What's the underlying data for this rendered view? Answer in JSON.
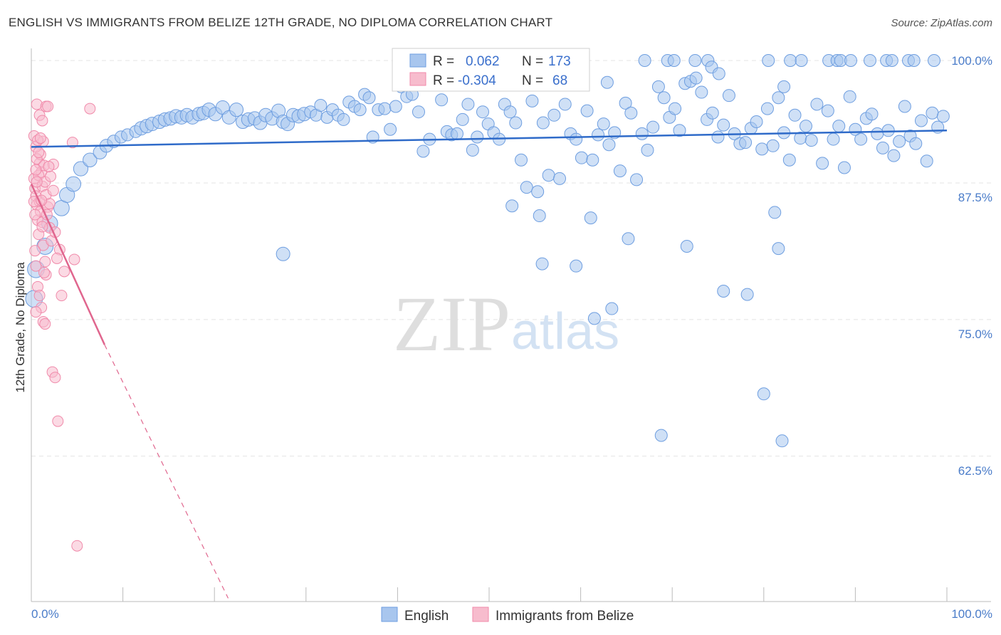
{
  "chart_data": {
    "type": "scatter",
    "title": "ENGLISH VS IMMIGRANTS FROM BELIZE 12TH GRADE, NO DIPLOMA CORRELATION CHART",
    "source": "Source: ZipAtlas.com",
    "xlabel": "",
    "ylabel": "12th Grade, No Diploma",
    "xlim": [
      0,
      100
    ],
    "ylim": [
      50.5,
      101.5
    ],
    "x_tick_labels": [
      "0.0%",
      "100.0%"
    ],
    "y_ticks": [
      {
        "value": 100.0,
        "label": "100.0%"
      },
      {
        "value": 87.5,
        "label": "87.5%"
      },
      {
        "value": 75.0,
        "label": "75.0%"
      },
      {
        "value": 62.5,
        "label": "62.5%"
      }
    ],
    "grid": true,
    "watermark": {
      "zip": "ZIP",
      "atlas": "atlas"
    },
    "legend_stats": [
      {
        "r_label": "R =",
        "r_value": "0.062",
        "n_label": "N =",
        "n_value": "173",
        "color": "#6e9ee0"
      },
      {
        "r_label": "R =",
        "r_value": "-0.304",
        "n_label": "N =",
        "n_value": "68",
        "color": "#f08aaa"
      }
    ],
    "series": [
      {
        "name": "English",
        "color": "#6e9ee0",
        "fill": "#a8c6ee",
        "trend": {
          "x0": 0,
          "y0": 92.1,
          "x1": 100,
          "y1": 93.6
        },
        "points": [
          [
            0.3,
            78.2
          ],
          [
            0.5,
            80.9
          ],
          [
            1.5,
            83.0
          ],
          [
            2.0,
            85.1
          ],
          [
            3.3,
            86.5
          ],
          [
            3.9,
            87.7
          ],
          [
            4.6,
            88.7
          ],
          [
            5.4,
            90.1
          ],
          [
            6.4,
            90.9
          ],
          [
            7.5,
            91.6
          ],
          [
            8.2,
            92.2
          ],
          [
            9.0,
            92.6
          ],
          [
            9.8,
            93.0
          ],
          [
            10.5,
            93.2
          ],
          [
            11.4,
            93.5
          ],
          [
            12.0,
            93.8
          ],
          [
            12.6,
            94.0
          ],
          [
            13.2,
            94.2
          ],
          [
            14.0,
            94.4
          ],
          [
            14.6,
            94.6
          ],
          [
            15.2,
            94.7
          ],
          [
            15.8,
            94.9
          ],
          [
            16.4,
            94.8
          ],
          [
            17.0,
            95.0
          ],
          [
            17.6,
            94.8
          ],
          [
            18.3,
            95.1
          ],
          [
            18.8,
            95.2
          ],
          [
            19.4,
            95.5
          ],
          [
            20.1,
            95.1
          ],
          [
            20.9,
            95.7
          ],
          [
            21.6,
            94.8
          ],
          [
            22.4,
            95.5
          ],
          [
            23.1,
            94.4
          ],
          [
            23.7,
            94.6
          ],
          [
            24.4,
            94.7
          ],
          [
            25.0,
            94.3
          ],
          [
            25.6,
            95.0
          ],
          [
            26.3,
            94.7
          ],
          [
            27.0,
            95.4
          ],
          [
            27.5,
            94.4
          ],
          [
            28.0,
            94.2
          ],
          [
            28.6,
            95.0
          ],
          [
            29.2,
            94.9
          ],
          [
            29.8,
            95.1
          ],
          [
            30.5,
            95.3
          ],
          [
            31.1,
            95.0
          ],
          [
            31.6,
            95.9
          ],
          [
            32.3,
            94.8
          ],
          [
            32.9,
            95.5
          ],
          [
            33.5,
            95.0
          ],
          [
            34.1,
            94.6
          ],
          [
            34.7,
            96.2
          ],
          [
            35.3,
            95.8
          ],
          [
            35.9,
            95.5
          ],
          [
            36.4,
            96.9
          ],
          [
            36.9,
            96.6
          ],
          [
            37.3,
            93.0
          ],
          [
            37.9,
            95.5
          ],
          [
            38.6,
            95.6
          ],
          [
            39.2,
            93.7
          ],
          [
            39.8,
            95.8
          ],
          [
            40.4,
            97.6
          ],
          [
            41.0,
            96.7
          ],
          [
            41.6,
            96.9
          ],
          [
            42.3,
            95.3
          ],
          [
            42.8,
            91.7
          ],
          [
            43.5,
            92.8
          ],
          [
            44.2,
            98.0
          ],
          [
            44.8,
            96.4
          ],
          [
            45.4,
            93.5
          ],
          [
            45.9,
            93.2
          ],
          [
            46.5,
            93.3
          ],
          [
            47.1,
            94.6
          ],
          [
            47.7,
            96.0
          ],
          [
            48.2,
            91.8
          ],
          [
            48.7,
            93.0
          ],
          [
            49.3,
            95.3
          ],
          [
            49.9,
            94.2
          ],
          [
            50.5,
            93.4
          ],
          [
            51.1,
            92.8
          ],
          [
            51.7,
            96.0
          ],
          [
            52.3,
            95.3
          ],
          [
            52.9,
            94.3
          ],
          [
            53.5,
            90.9
          ],
          [
            54.1,
            88.4
          ],
          [
            54.7,
            96.3
          ],
          [
            55.3,
            88.0
          ],
          [
            55.9,
            94.3
          ],
          [
            56.5,
            89.5
          ],
          [
            57.1,
            95.0
          ],
          [
            57.7,
            89.2
          ],
          [
            58.3,
            96.0
          ],
          [
            58.9,
            93.3
          ],
          [
            59.5,
            92.8
          ],
          [
            60.1,
            91.1
          ],
          [
            60.7,
            95.4
          ],
          [
            61.3,
            90.9
          ],
          [
            61.9,
            93.2
          ],
          [
            62.5,
            94.2
          ],
          [
            63.1,
            92.3
          ],
          [
            63.7,
            93.4
          ],
          [
            64.3,
            89.9
          ],
          [
            64.9,
            96.1
          ],
          [
            65.5,
            95.2
          ],
          [
            66.1,
            89.1
          ],
          [
            66.7,
            93.3
          ],
          [
            67.3,
            91.8
          ],
          [
            67.9,
            93.9
          ],
          [
            68.5,
            97.6
          ],
          [
            69.1,
            96.6
          ],
          [
            69.7,
            94.8
          ],
          [
            70.3,
            95.6
          ],
          [
            70.8,
            93.6
          ],
          [
            71.4,
            97.9
          ],
          [
            72.0,
            98.1
          ],
          [
            72.6,
            98.4
          ],
          [
            73.2,
            97.1
          ],
          [
            73.8,
            94.6
          ],
          [
            74.4,
            95.2
          ],
          [
            75.0,
            93.0
          ],
          [
            75.6,
            94.1
          ],
          [
            76.2,
            96.8
          ],
          [
            76.8,
            93.3
          ],
          [
            77.4,
            92.4
          ],
          [
            78.0,
            92.5
          ],
          [
            78.6,
            93.8
          ],
          [
            79.2,
            94.4
          ],
          [
            79.8,
            91.9
          ],
          [
            80.4,
            95.6
          ],
          [
            81.0,
            92.2
          ],
          [
            81.6,
            96.6
          ],
          [
            82.2,
            93.4
          ],
          [
            82.8,
            90.9
          ],
          [
            83.4,
            95.0
          ],
          [
            84.0,
            92.9
          ],
          [
            84.6,
            94.0
          ],
          [
            85.2,
            92.7
          ],
          [
            85.8,
            96.0
          ],
          [
            86.4,
            90.6
          ],
          [
            87.0,
            95.4
          ],
          [
            87.6,
            92.8
          ],
          [
            88.2,
            94.0
          ],
          [
            88.8,
            90.2
          ],
          [
            89.4,
            96.7
          ],
          [
            90.0,
            93.7
          ],
          [
            90.6,
            92.8
          ],
          [
            91.2,
            94.7
          ],
          [
            91.8,
            95.1
          ],
          [
            92.4,
            93.3
          ],
          [
            93.0,
            92.0
          ],
          [
            93.6,
            93.6
          ],
          [
            94.2,
            91.3
          ],
          [
            94.8,
            92.6
          ],
          [
            95.4,
            95.8
          ],
          [
            96.0,
            93.1
          ],
          [
            96.6,
            92.4
          ],
          [
            97.2,
            94.5
          ],
          [
            97.8,
            90.8
          ],
          [
            98.4,
            95.2
          ],
          [
            99.0,
            93.9
          ],
          [
            99.6,
            94.9
          ],
          [
            67.0,
            100.0
          ],
          [
            69.5,
            100.0
          ],
          [
            70.2,
            100.0
          ],
          [
            72.5,
            100.0
          ],
          [
            73.9,
            100.0
          ],
          [
            80.5,
            100.0
          ],
          [
            82.9,
            100.0
          ],
          [
            84.1,
            100.0
          ],
          [
            87.1,
            100.0
          ],
          [
            88.0,
            100.0
          ],
          [
            88.4,
            100.0
          ],
          [
            89.5,
            100.0
          ],
          [
            91.6,
            100.0
          ],
          [
            93.4,
            100.0
          ],
          [
            94.0,
            100.0
          ],
          [
            95.8,
            100.0
          ],
          [
            96.4,
            100.0
          ],
          [
            98.6,
            100.0
          ],
          [
            74.3,
            99.4
          ],
          [
            75.1,
            98.8
          ],
          [
            82.2,
            97.6
          ],
          [
            62.9,
            98.0
          ],
          [
            27.5,
            82.3
          ],
          [
            52.5,
            86.7
          ],
          [
            55.5,
            85.8
          ],
          [
            55.8,
            81.4
          ],
          [
            61.1,
            85.6
          ],
          [
            63.4,
            77.3
          ],
          [
            65.2,
            83.7
          ],
          [
            71.6,
            83.0
          ],
          [
            75.6,
            78.9
          ],
          [
            78.2,
            78.6
          ],
          [
            80.0,
            69.5
          ],
          [
            81.2,
            86.1
          ],
          [
            81.6,
            82.8
          ],
          [
            82.0,
            65.2
          ],
          [
            61.5,
            76.4
          ],
          [
            68.8,
            65.7
          ],
          [
            59.5,
            81.2
          ]
        ]
      },
      {
        "name": "Immigrants from Belize",
        "color": "#f08aaa",
        "fill": "#f7bccd",
        "trend": {
          "x0": 0,
          "y0": 88.7,
          "x1": 8.0,
          "y1": 74.0
        },
        "trend_ext": {
          "x0": 8.0,
          "y0": 74.0,
          "x1": 21.5,
          "y1": 50.8
        },
        "points": [
          [
            0.3,
            89.2
          ],
          [
            0.4,
            88.3
          ],
          [
            0.5,
            87.6
          ],
          [
            0.6,
            86.8
          ],
          [
            0.7,
            85.4
          ],
          [
            0.8,
            84.1
          ],
          [
            0.9,
            90.6
          ],
          [
            1.0,
            91.4
          ],
          [
            1.1,
            89.8
          ],
          [
            1.2,
            88.5
          ],
          [
            0.3,
            93.1
          ],
          [
            0.5,
            92.1
          ],
          [
            0.6,
            91.0
          ],
          [
            0.8,
            89.5
          ],
          [
            0.9,
            87.1
          ],
          [
            1.0,
            86.2
          ],
          [
            1.2,
            85.2
          ],
          [
            1.3,
            83.1
          ],
          [
            1.5,
            81.6
          ],
          [
            1.6,
            80.4
          ],
          [
            1.3,
            92.6
          ],
          [
            1.4,
            90.4
          ],
          [
            1.5,
            88.9
          ],
          [
            1.6,
            87.7
          ],
          [
            1.8,
            86.6
          ],
          [
            2.0,
            84.7
          ],
          [
            2.2,
            83.5
          ],
          [
            0.4,
            82.6
          ],
          [
            0.5,
            81.2
          ],
          [
            0.7,
            79.3
          ],
          [
            0.9,
            78.5
          ],
          [
            1.1,
            77.4
          ],
          [
            1.3,
            76.1
          ],
          [
            1.5,
            75.9
          ],
          [
            0.6,
            96.0
          ],
          [
            0.9,
            95.0
          ],
          [
            1.2,
            94.5
          ],
          [
            1.6,
            95.8
          ],
          [
            1.8,
            95.8
          ],
          [
            2.4,
            90.5
          ],
          [
            2.1,
            89.4
          ],
          [
            2.4,
            88.1
          ],
          [
            2.0,
            86.9
          ],
          [
            2.6,
            84.3
          ],
          [
            3.1,
            82.7
          ],
          [
            2.8,
            81.9
          ],
          [
            3.6,
            80.7
          ],
          [
            4.7,
            81.8
          ],
          [
            3.3,
            78.5
          ],
          [
            4.5,
            92.5
          ],
          [
            6.4,
            95.6
          ],
          [
            2.3,
            71.5
          ],
          [
            2.6,
            71.0
          ],
          [
            2.9,
            67.0
          ],
          [
            5.0,
            55.6
          ],
          [
            0.3,
            87.1
          ],
          [
            0.4,
            85.9
          ],
          [
            0.5,
            90.0
          ],
          [
            0.6,
            88.9
          ],
          [
            0.7,
            92.7
          ],
          [
            0.8,
            91.6
          ],
          [
            1.0,
            92.9
          ],
          [
            1.1,
            87.2
          ],
          [
            1.2,
            84.8
          ],
          [
            1.4,
            80.6
          ],
          [
            0.5,
            77.0
          ],
          [
            1.9,
            90.3
          ],
          [
            1.7,
            85.9
          ]
        ]
      }
    ]
  },
  "legend_bottom": [
    {
      "label": "English",
      "color": "#6e9ee0",
      "fill": "#a8c6ee"
    },
    {
      "label": "Immigrants from Belize",
      "color": "#f08aaa",
      "fill": "#f7bccd"
    }
  ]
}
